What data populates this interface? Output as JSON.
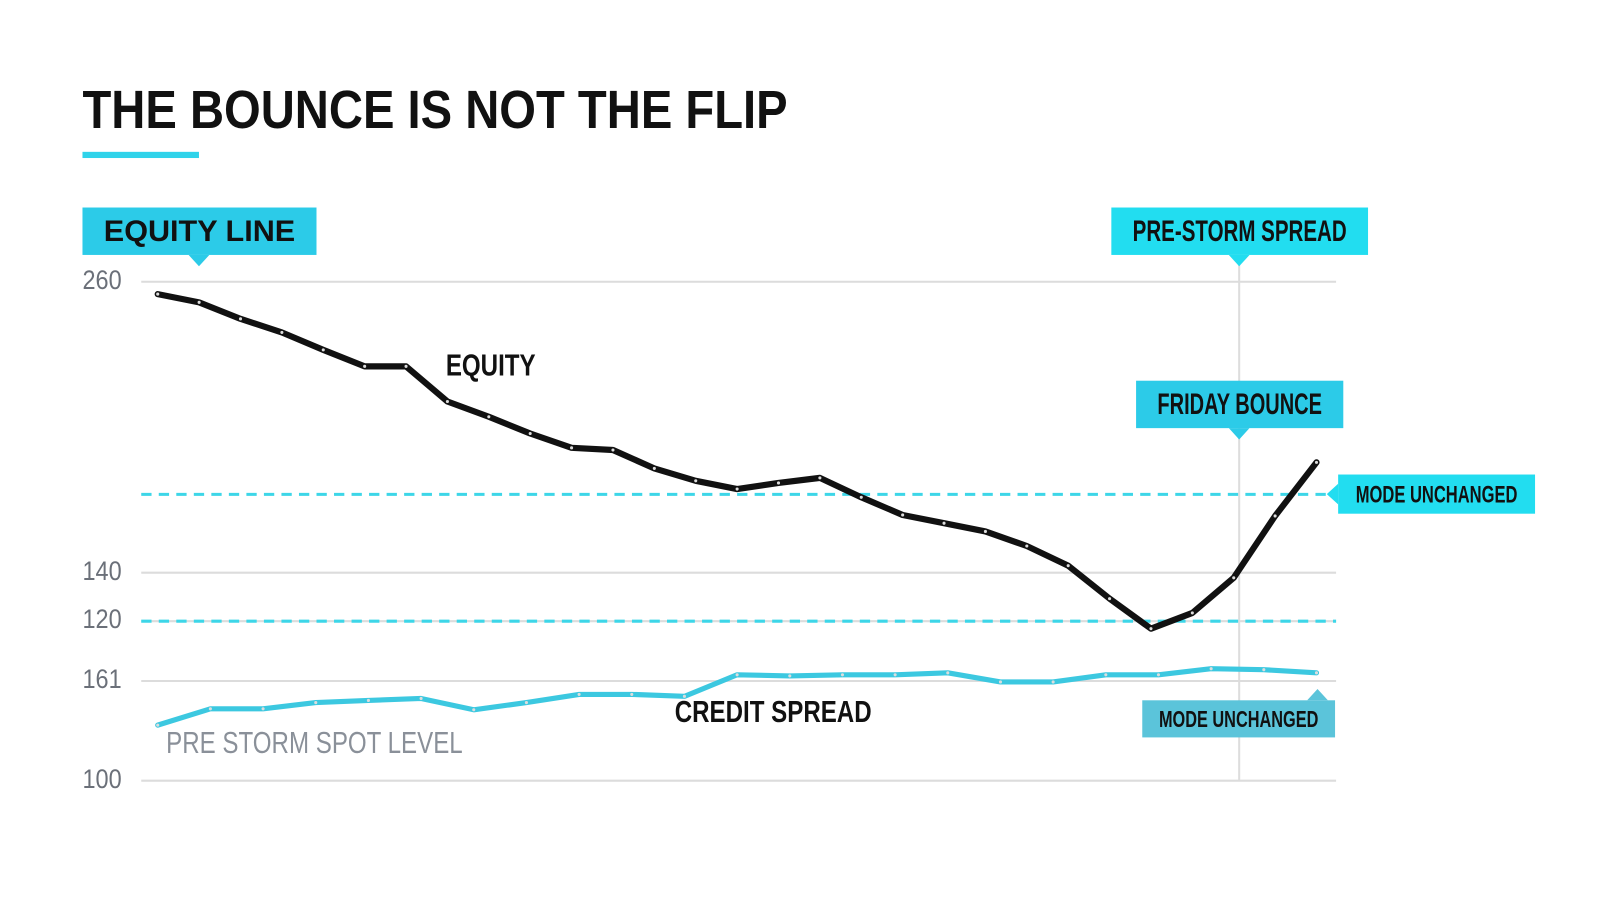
{
  "chart_data": [
    {
      "type": "line",
      "title": "THE BOUNCE IS NOT THE FLIP",
      "annotations": [
        "EQUITY LINE",
        "PRE-STORM SPREAD",
        "FRIDAY BOUNCE",
        "MODE UNCHANGED",
        "EQUITY"
      ],
      "categories": [
        null,
        null,
        null,
        null,
        null,
        null,
        null,
        null,
        null,
        null,
        null,
        null,
        null,
        null,
        null,
        null,
        null,
        null,
        null,
        null,
        null,
        null,
        null,
        null,
        null,
        null,
        null,
        null,
        null
      ],
      "series": [
        {
          "name": "EQUITY",
          "color": "#111111",
          "values": [
            254.9,
            251.5,
            244.7,
            239.1,
            231.9,
            225.1,
            225.1,
            210.6,
            204.3,
            197.4,
            191.5,
            190.6,
            183.0,
            177.9,
            174.5,
            177.0,
            179.1,
            171.1,
            163.8,
            160.4,
            157.0,
            151.0,
            142.9,
            129.3,
            116.9,
            123.4,
            137.9,
            163.4,
            185.5
          ]
        }
      ],
      "reference_lines": [
        172.3,
        120
      ],
      "reference_color": "#3dd6e8",
      "ylim": [
        115,
        260
      ],
      "yticks": [
        260,
        140,
        120
      ],
      "grid": true
    },
    {
      "type": "line",
      "annotations": [
        "CREDIT SPREAD",
        "PRE STORM SPOT LEVEL",
        "MODE UNCHANGED"
      ],
      "categories": [
        null,
        null,
        null,
        null,
        null,
        null,
        null,
        null,
        null,
        null,
        null,
        null,
        null,
        null,
        null,
        null,
        null,
        null,
        null,
        null,
        null,
        null,
        null
      ],
      "series": [
        {
          "name": "CREDIT SPREAD",
          "color": "#3cc8e0",
          "values": [
            134.0,
            144.0,
            144.0,
            147.8,
            149.1,
            150.3,
            143.4,
            147.8,
            152.8,
            152.8,
            151.6,
            164.8,
            164.1,
            164.8,
            164.8,
            166.0,
            160.4,
            160.4,
            164.8,
            164.8,
            168.5,
            167.9,
            166.0
          ]
        }
      ],
      "ylim": [
        100,
        170
      ],
      "yticks": [
        161,
        100
      ],
      "grid": true
    }
  ]
}
